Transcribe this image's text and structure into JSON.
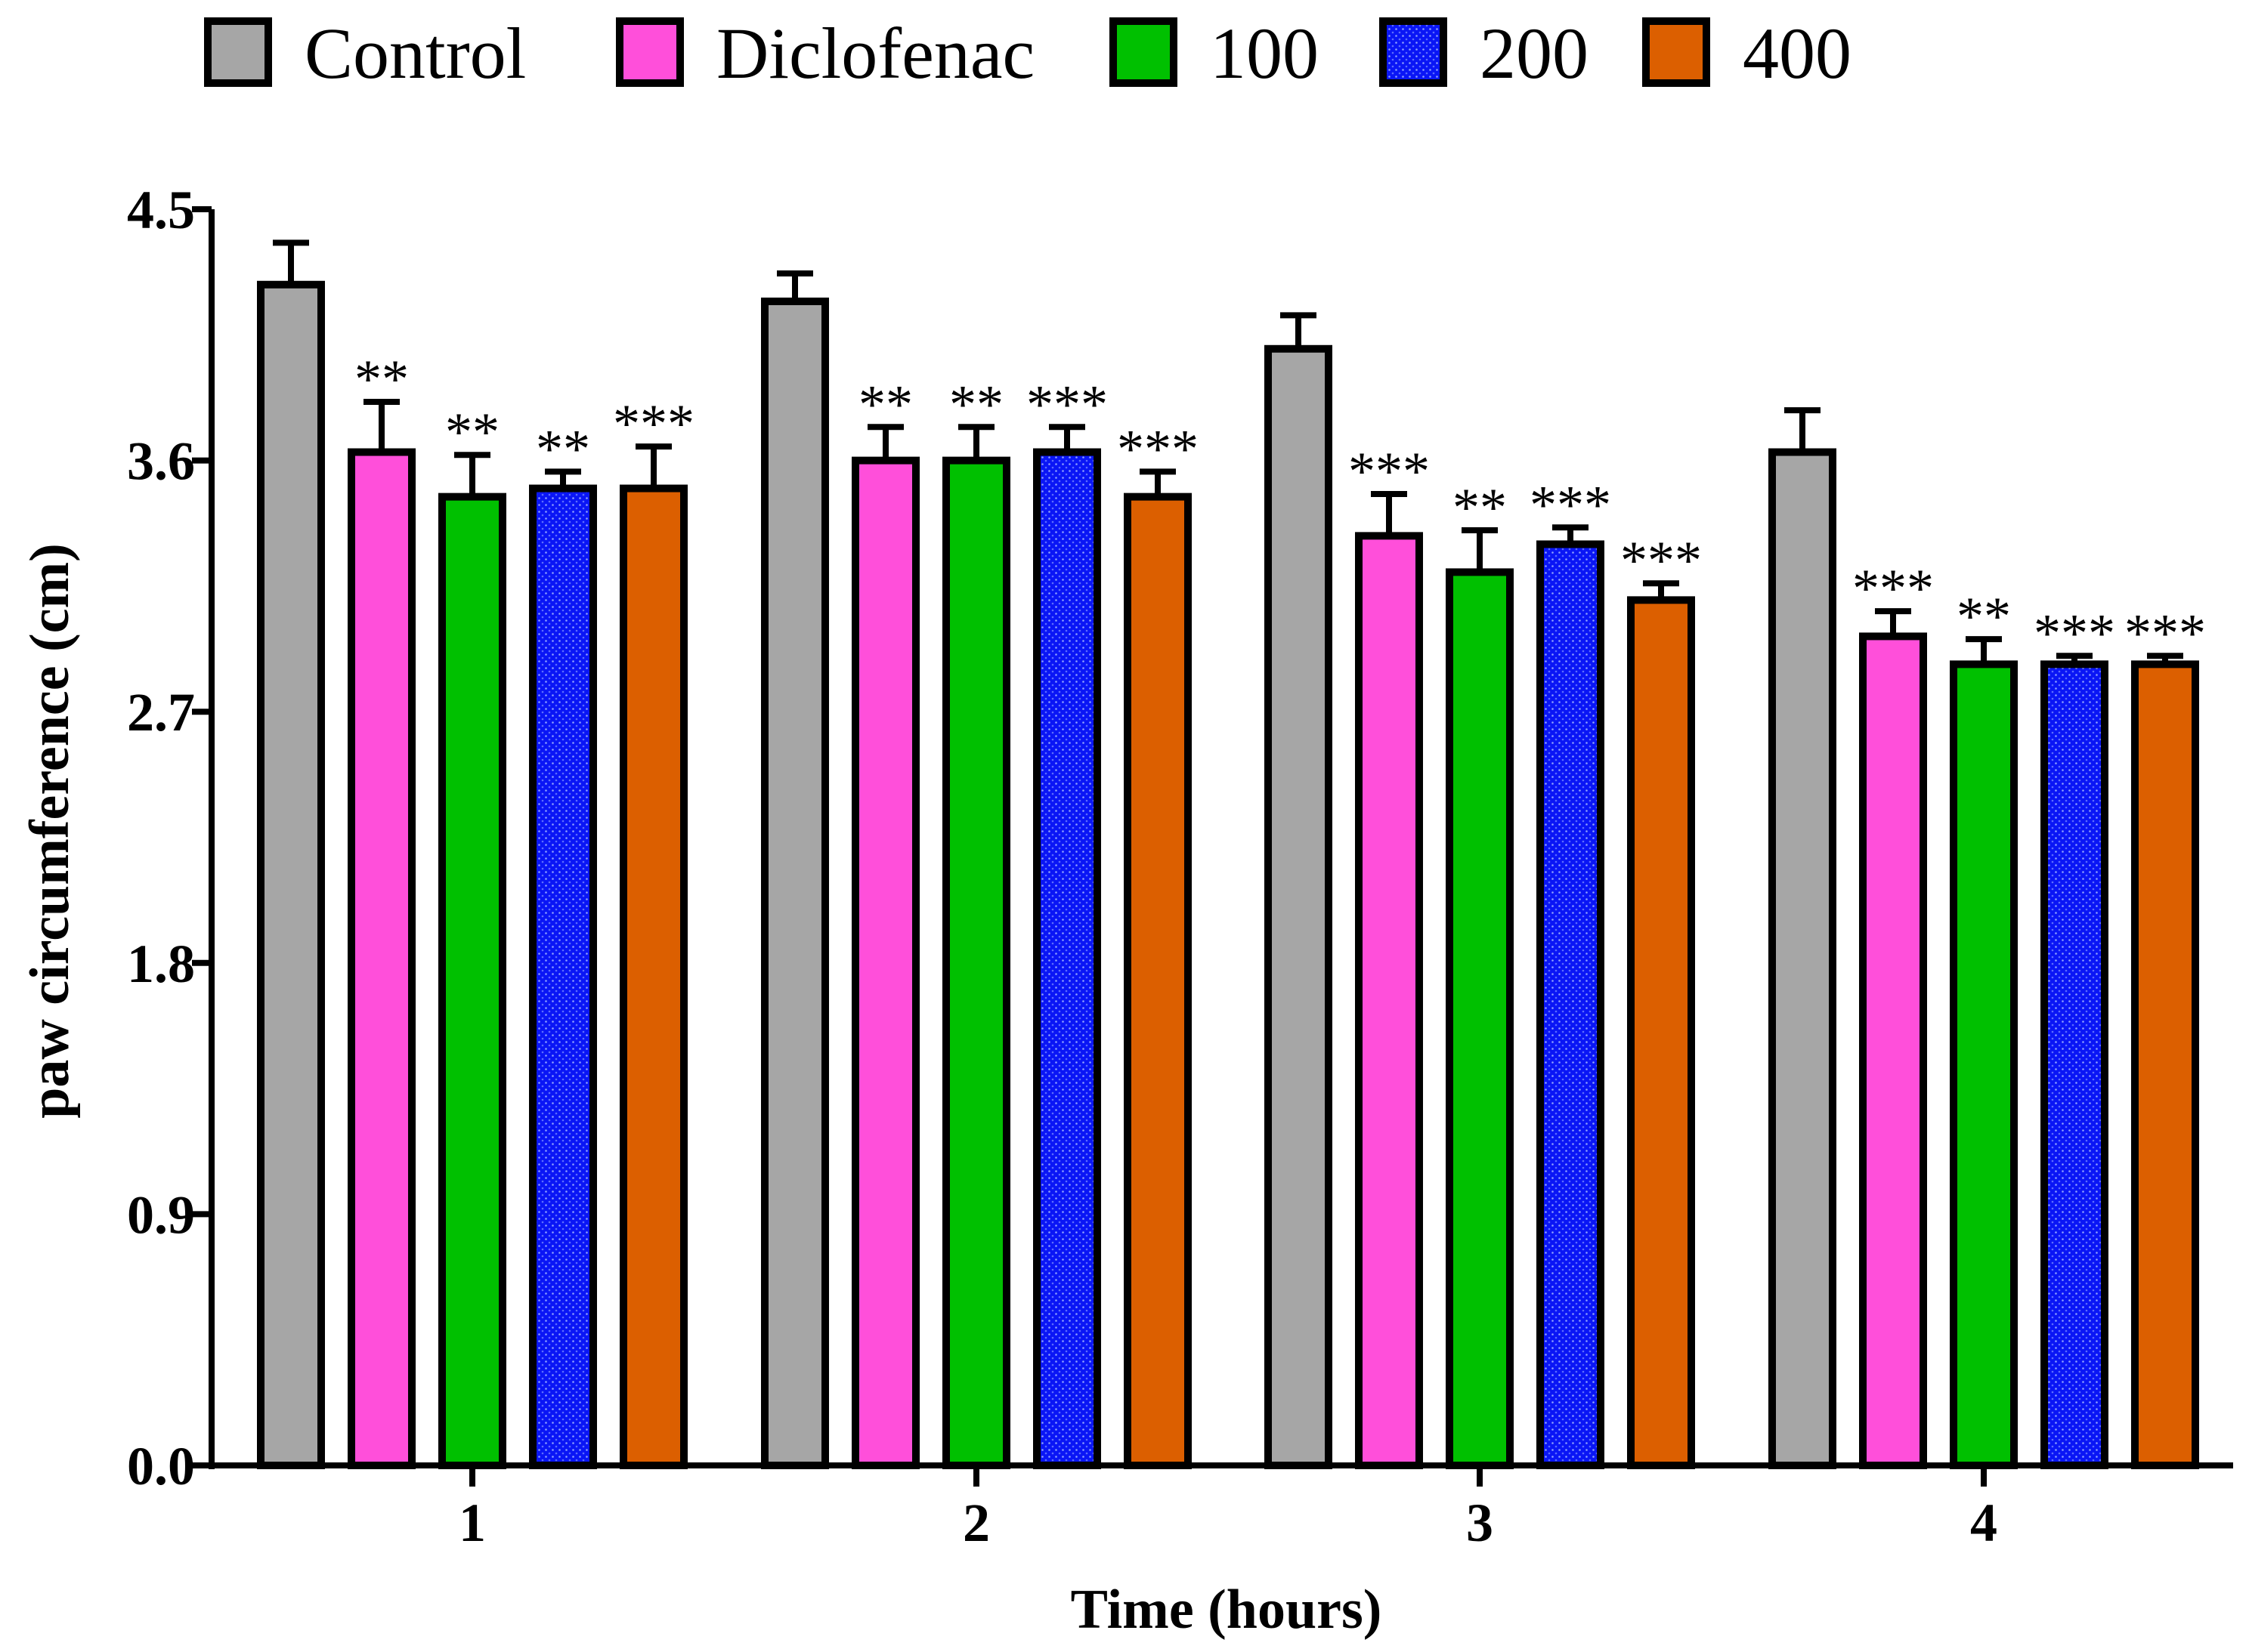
{
  "chart_data": {
    "type": "bar",
    "categories": [
      "1",
      "2",
      "3",
      "4"
    ],
    "xlabel": "Time (hours)",
    "ylabel": "paw circumference (cm)",
    "ylim": [
      0,
      4.5
    ],
    "yticks": [
      "0.0",
      "0.9",
      "1.8",
      "2.7",
      "3.6",
      "4.5"
    ],
    "legend_position": "top",
    "grid": false,
    "series": [
      {
        "name": "Control",
        "color": "#a6a6a6",
        "pattern": "solid",
        "values": [
          4.23,
          4.17,
          4.0,
          3.63
        ],
        "errors": [
          0.15,
          0.1,
          0.12,
          0.15
        ],
        "significance": [
          "",
          "",
          "",
          ""
        ]
      },
      {
        "name": "Diclofenac",
        "color": "#ff4fda",
        "pattern": "solid",
        "values": [
          3.63,
          3.6,
          3.33,
          2.97
        ],
        "errors": [
          0.18,
          0.12,
          0.15,
          0.09
        ],
        "significance": [
          "**",
          "**",
          "***",
          "***"
        ]
      },
      {
        "name": "100",
        "color": "#00c000",
        "pattern": "solid",
        "values": [
          3.47,
          3.6,
          3.2,
          2.87
        ],
        "errors": [
          0.15,
          0.12,
          0.15,
          0.09
        ],
        "significance": [
          "**",
          "**",
          "**",
          "**"
        ]
      },
      {
        "name": "200",
        "color": "#0a16f5",
        "pattern": "dotted",
        "values": [
          3.5,
          3.63,
          3.3,
          2.87
        ],
        "errors": [
          0.06,
          0.09,
          0.06,
          0.03
        ],
        "significance": [
          "**",
          "***",
          "***",
          "***"
        ]
      },
      {
        "name": "400",
        "color": "#dc5f00",
        "pattern": "solid",
        "values": [
          3.5,
          3.47,
          3.1,
          2.87
        ],
        "errors": [
          0.15,
          0.09,
          0.06,
          0.03
        ],
        "significance": [
          "***",
          "***",
          "***",
          "***"
        ]
      }
    ]
  }
}
